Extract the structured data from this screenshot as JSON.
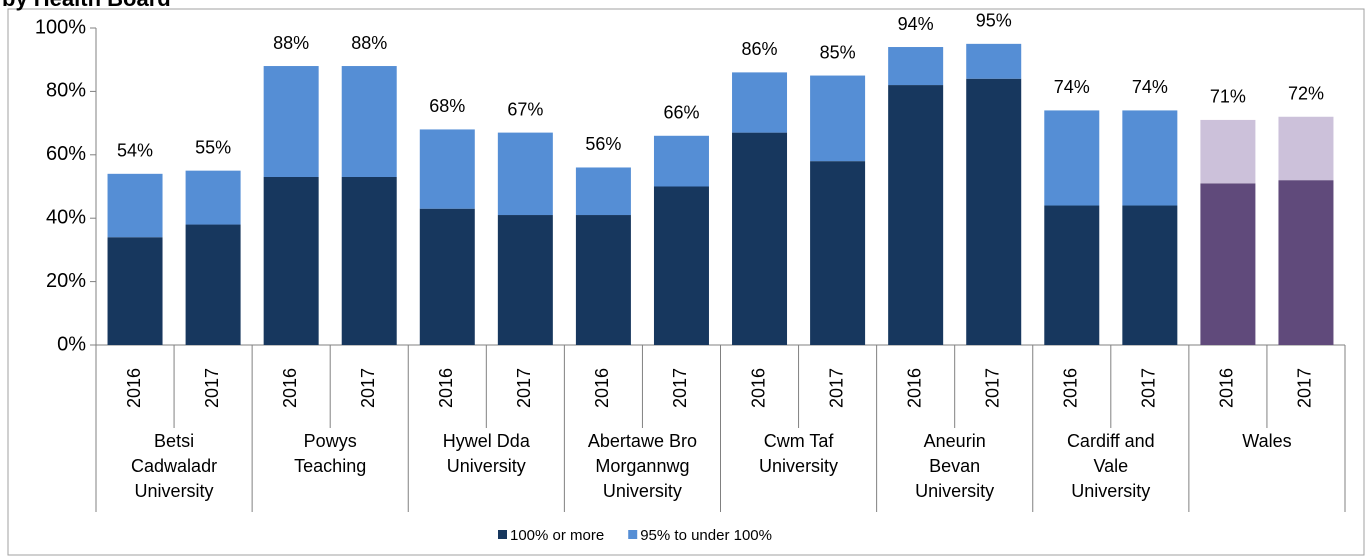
{
  "chart_data": {
    "type": "stacked_bar",
    "title": "by Health Board",
    "categories": [
      "2016",
      "2017",
      "2016",
      "2017",
      "2016",
      "2017",
      "2016",
      "2017",
      "2016",
      "2017",
      "2016",
      "2017",
      "2016",
      "2017",
      "2016",
      "2017"
    ],
    "groups": [
      {
        "label": [
          "Betsi",
          "Cadwaladr",
          "University"
        ]
      },
      {
        "label": [
          "Powys",
          "Teaching"
        ]
      },
      {
        "label": [
          "Hywel Dda",
          "University"
        ]
      },
      {
        "label": [
          "Abertawe Bro",
          "Morgannwg",
          "University"
        ]
      },
      {
        "label": [
          "Cwm Taf",
          "University"
        ]
      },
      {
        "label": [
          "Aneurin",
          "Bevan",
          "University"
        ]
      },
      {
        "label": [
          "Cardiff and",
          "Vale",
          "University"
        ]
      },
      {
        "label": [
          "Wales"
        ]
      }
    ],
    "series": [
      {
        "name": "100% or more",
        "color": "#17375e",
        "colors": [
          "#17375e",
          "#17375e",
          "#17375e",
          "#17375e",
          "#17375e",
          "#17375e",
          "#17375e",
          "#17375e",
          "#17375e",
          "#17375e",
          "#17375e",
          "#17375e",
          "#17375e",
          "#17375e",
          "#604a7b",
          "#604a7b"
        ],
        "values": [
          34,
          38,
          53,
          53,
          43,
          41,
          41,
          50,
          67,
          58,
          82,
          84,
          44,
          44,
          51,
          52
        ]
      },
      {
        "name": "95% to under 100%",
        "color": "#558ed5",
        "colors": [
          "#558ed5",
          "#558ed5",
          "#558ed5",
          "#558ed5",
          "#558ed5",
          "#558ed5",
          "#558ed5",
          "#558ed5",
          "#558ed5",
          "#558ed5",
          "#558ed5",
          "#558ed5",
          "#558ed5",
          "#558ed5",
          "#ccc1da",
          "#ccc1da"
        ],
        "values": [
          20,
          17,
          35,
          35,
          25,
          26,
          15,
          16,
          19,
          27,
          12,
          11,
          30,
          30,
          20,
          20
        ]
      }
    ],
    "totals": [
      54,
      55,
      88,
      88,
      68,
      67,
      56,
      66,
      86,
      85,
      94,
      95,
      74,
      74,
      71,
      72
    ],
    "total_labels": [
      "54%",
      "55%",
      "88%",
      "88%",
      "68%",
      "67%",
      "56%",
      "66%",
      "86%",
      "85%",
      "94%",
      "95%",
      "74%",
      "74%",
      "71%",
      "72%"
    ],
    "ylim": [
      0,
      100
    ],
    "yticks": [
      {
        "value": 0,
        "label": "0%"
      },
      {
        "value": 20,
        "label": "20%"
      },
      {
        "value": 40,
        "label": "40%"
      },
      {
        "value": 60,
        "label": "60%"
      },
      {
        "value": 80,
        "label": "80%"
      },
      {
        "value": 100,
        "label": "100%"
      }
    ],
    "legend": "bottom"
  }
}
